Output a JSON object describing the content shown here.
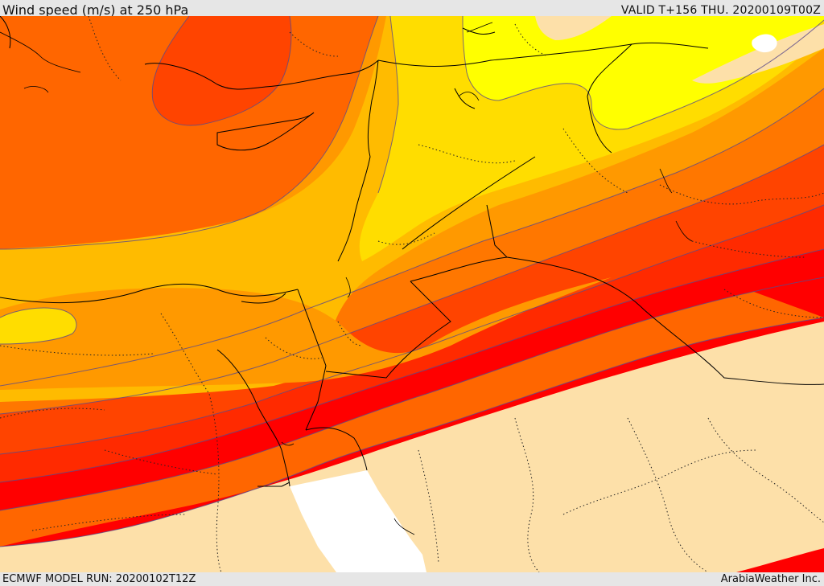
{
  "header": {
    "title": "Wind speed (m/s) at 250 hPa",
    "valid": "VALID T+156 THU. 20200109T00Z"
  },
  "footer": {
    "model_run": "ECMWF MODEL RUN: 20200102T12Z",
    "credit": "ArabiaWeather Inc."
  },
  "colors": {
    "land": "#fde0a9",
    "sea": "#ffffff",
    "band_yellow": "#ffff00",
    "band_gold": "#ffdd00",
    "band_amber": "#ffbb00",
    "band_orange_light": "#ff9900",
    "band_orange": "#ff7700",
    "band_orange_dark": "#ff6600",
    "band_red_orange": "#ff4400",
    "band_red_light": "#ff2a00",
    "band_red": "#ff0000",
    "contour": "#5b4a8a",
    "border": "#000000"
  }
}
